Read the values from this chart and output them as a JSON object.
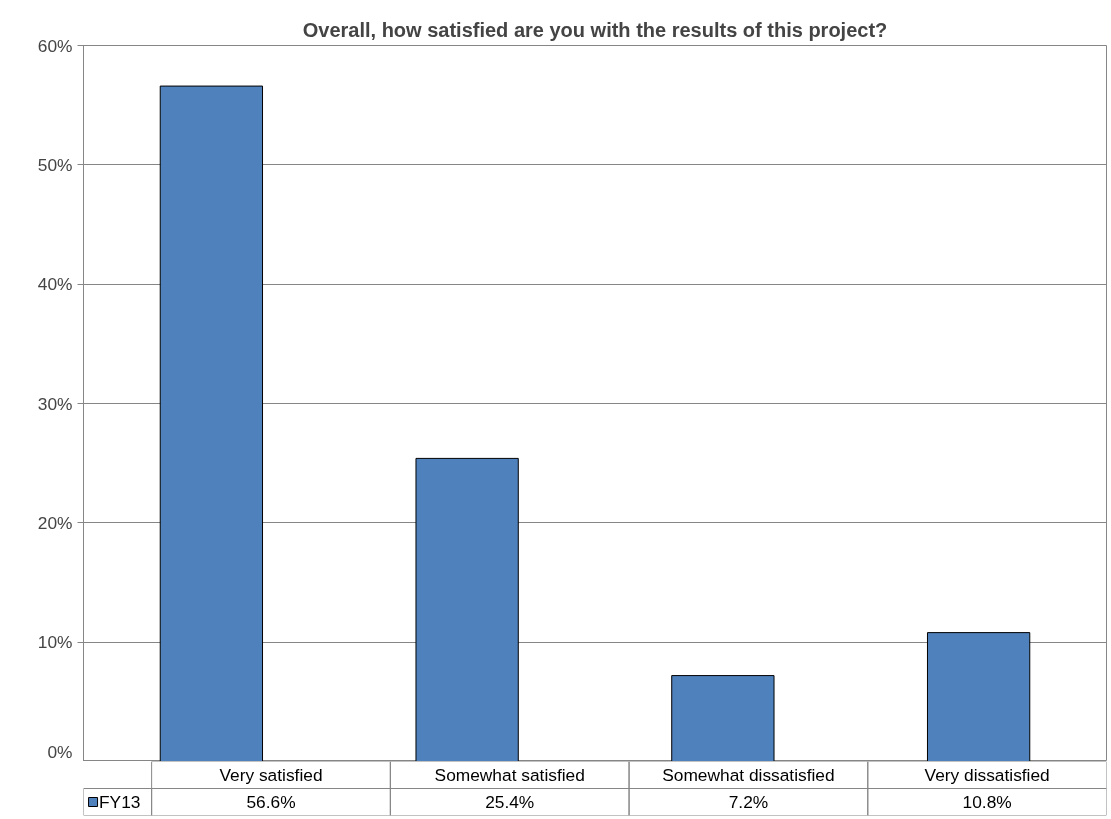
{
  "chart_data": {
    "type": "bar",
    "title": "Overall, how satisfied are you with the results of this project?",
    "categories": [
      "Very satisfied",
      "Somewhat satisfied",
      "Somewhat dissatisfied",
      "Very dissatisfied"
    ],
    "series": [
      {
        "name": "FY13",
        "color": "#4f81bd",
        "values": [
          56.6,
          25.4,
          7.2,
          10.8
        ],
        "value_labels": [
          "56.6%",
          "25.4%",
          "7.2%",
          "10.8%"
        ]
      }
    ],
    "ylim": [
      0,
      60
    ],
    "yticks": [
      {
        "value": 0,
        "label": "0%"
      },
      {
        "value": 10,
        "label": "10%"
      },
      {
        "value": 20,
        "label": "20%"
      },
      {
        "value": 30,
        "label": "30%"
      },
      {
        "value": 40,
        "label": "40%"
      },
      {
        "value": 50,
        "label": "50%"
      },
      {
        "value": 60,
        "label": "60%"
      }
    ],
    "grid": "y"
  }
}
